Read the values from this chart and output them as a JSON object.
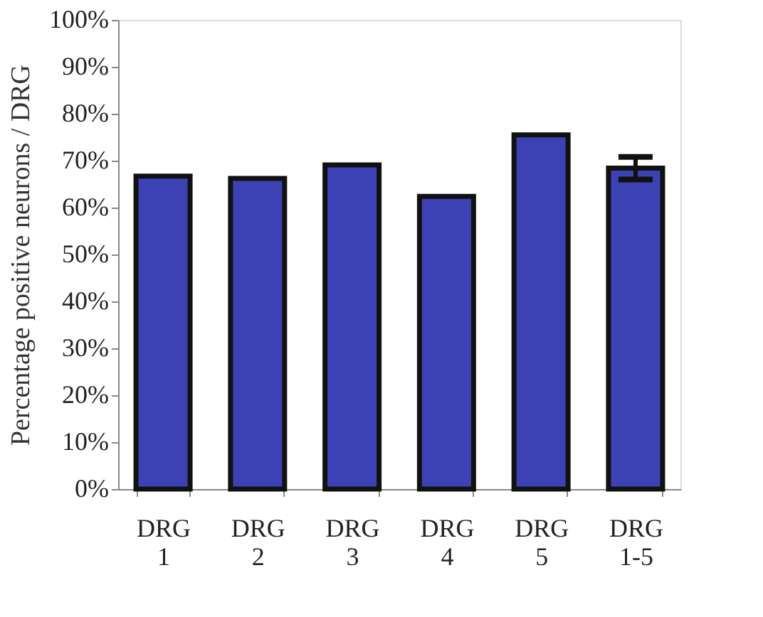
{
  "chart_data": {
    "type": "bar",
    "ylabel": "Percentage positive neurons / DRG",
    "categories": [
      "DRG 1",
      "DRG 2",
      "DRG 3",
      "DRG 4",
      "DRG 5",
      "DRG 1-5"
    ],
    "values": [
      66.7,
      66.2,
      69.1,
      62.4,
      75.5,
      68.4
    ],
    "errors": [
      null,
      null,
      null,
      null,
      null,
      2.4
    ],
    "color": "#3c42b4",
    "ylim": [
      0,
      100
    ],
    "yticks": [
      {
        "value": 0,
        "label": "0%"
      },
      {
        "value": 10,
        "label": "10%"
      },
      {
        "value": 20,
        "label": "20%"
      },
      {
        "value": 30,
        "label": "30%"
      },
      {
        "value": 40,
        "label": "40%"
      },
      {
        "value": 50,
        "label": "50%"
      },
      {
        "value": 60,
        "label": "60%"
      },
      {
        "value": 70,
        "label": "70%"
      },
      {
        "value": 80,
        "label": "80%"
      },
      {
        "value": 90,
        "label": "90%"
      },
      {
        "value": 100,
        "label": "100%"
      }
    ],
    "grid": false
  }
}
